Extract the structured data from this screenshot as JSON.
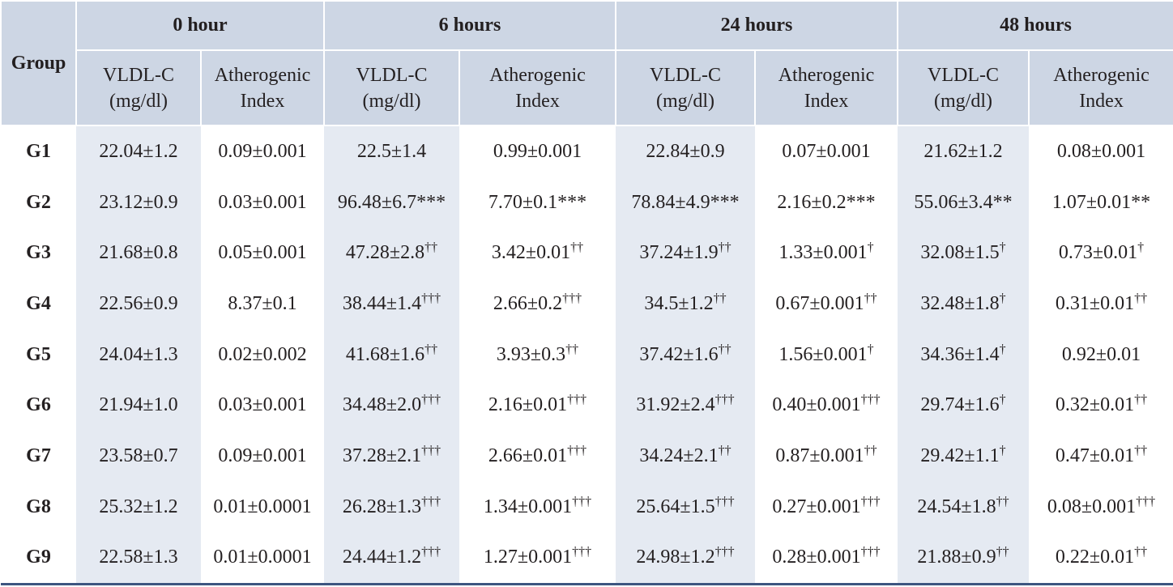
{
  "header": {
    "group": "Group",
    "periods": [
      "0 hour",
      "6 hours",
      "24 hours",
      "48 hours"
    ],
    "subheaders": [
      [
        "VLDL-C",
        "(mg/dl)"
      ],
      [
        "Atherogenic",
        "Index"
      ]
    ]
  },
  "rows": [
    {
      "group": "G1",
      "cells": [
        {
          "text": "22.04±1.2"
        },
        {
          "text": "0.09±0.001"
        },
        {
          "text": "22.5±1.4"
        },
        {
          "text": "0.99±0.001"
        },
        {
          "text": "22.84±0.9"
        },
        {
          "text": "0.07±0.001"
        },
        {
          "text": "21.62±1.2"
        },
        {
          "text": "0.08±0.001"
        }
      ]
    },
    {
      "group": "G2",
      "cells": [
        {
          "text": "23.12±0.9"
        },
        {
          "text": "0.03±0.001"
        },
        {
          "text": "96.48±6.7***"
        },
        {
          "text": "7.70±0.1***"
        },
        {
          "text": "78.84±4.9***"
        },
        {
          "text": "2.16±0.2***"
        },
        {
          "text": "55.06±3.4**"
        },
        {
          "text": "1.07±0.01**"
        }
      ]
    },
    {
      "group": "G3",
      "cells": [
        {
          "text": "21.68±0.8"
        },
        {
          "text": "0.05±0.001"
        },
        {
          "text": "47.28±2.8",
          "sup": "††"
        },
        {
          "text": "3.42±0.01",
          "sup": "††"
        },
        {
          "text": "37.24±1.9",
          "sup": "††"
        },
        {
          "text": "1.33±0.001",
          "sup": "†"
        },
        {
          "text": "32.08±1.5",
          "sup": "†"
        },
        {
          "text": "0.73±0.01",
          "sup": "†"
        }
      ]
    },
    {
      "group": "G4",
      "cells": [
        {
          "text": "22.56±0.9"
        },
        {
          "text": "8.37±0.1"
        },
        {
          "text": "38.44±1.4",
          "sup": "†††"
        },
        {
          "text": "2.66±0.2",
          "sup": "†††"
        },
        {
          "text": "34.5±1.2",
          "sup": "††"
        },
        {
          "text": "0.67±0.001",
          "sup": "††"
        },
        {
          "text": "32.48±1.8",
          "sup": "†"
        },
        {
          "text": "0.31±0.01",
          "sup": "††"
        }
      ]
    },
    {
      "group": "G5",
      "cells": [
        {
          "text": "24.04±1.3"
        },
        {
          "text": "0.02±0.002"
        },
        {
          "text": "41.68±1.6",
          "sup": "††"
        },
        {
          "text": "3.93±0.3",
          "sup": "††"
        },
        {
          "text": "37.42±1.6",
          "sup": "††"
        },
        {
          "text": "1.56±0.001",
          "sup": "†"
        },
        {
          "text": "34.36±1.4",
          "sup": "†"
        },
        {
          "text": "0.92±0.01"
        }
      ]
    },
    {
      "group": "G6",
      "cells": [
        {
          "text": "21.94±1.0"
        },
        {
          "text": "0.03±0.001"
        },
        {
          "text": "34.48±2.0",
          "sup": "†††"
        },
        {
          "text": "2.16±0.01",
          "sup": "†††"
        },
        {
          "text": "31.92±2.4",
          "sup": "†††"
        },
        {
          "text": "0.40±0.001",
          "sup": "†††"
        },
        {
          "text": "29.74±1.6",
          "sup": "†"
        },
        {
          "text": "0.32±0.01",
          "sup": "††"
        }
      ]
    },
    {
      "group": "G7",
      "cells": [
        {
          "text": "23.58±0.7"
        },
        {
          "text": "0.09±0.001"
        },
        {
          "text": "37.28±2.1",
          "sup": "†††"
        },
        {
          "text": "2.66±0.01",
          "sup": "†††"
        },
        {
          "text": "34.24±2.1",
          "sup": "††"
        },
        {
          "text": "0.87±0.001",
          "sup": "††"
        },
        {
          "text": "29.42±1.1",
          "sup": "†"
        },
        {
          "text": "0.47±0.01",
          "sup": "††"
        }
      ]
    },
    {
      "group": "G8",
      "cells": [
        {
          "text": "25.32±1.2"
        },
        {
          "text": "0.01±0.0001"
        },
        {
          "text": "26.28±1.3",
          "sup": "†††"
        },
        {
          "text": "1.34±0.001",
          "sup": "†††"
        },
        {
          "text": "25.64±1.5",
          "sup": "†††"
        },
        {
          "text": "0.27±0.001",
          "sup": "†††"
        },
        {
          "text": "24.54±1.8",
          "sup": "††"
        },
        {
          "text": "0.08±0.001",
          "sup": "†††"
        }
      ]
    },
    {
      "group": "G9",
      "cells": [
        {
          "text": "22.58±1.3"
        },
        {
          "text": "0.01±0.0001"
        },
        {
          "text": "24.44±1.2",
          "sup": "†††"
        },
        {
          "text": "1.27±0.001",
          "sup": "†††"
        },
        {
          "text": "24.98±1.2",
          "sup": "†††"
        },
        {
          "text": "0.28±0.001",
          "sup": "†††"
        },
        {
          "text": "21.88±0.9",
          "sup": "††"
        },
        {
          "text": "0.22±0.01",
          "sup": "††"
        }
      ]
    }
  ]
}
